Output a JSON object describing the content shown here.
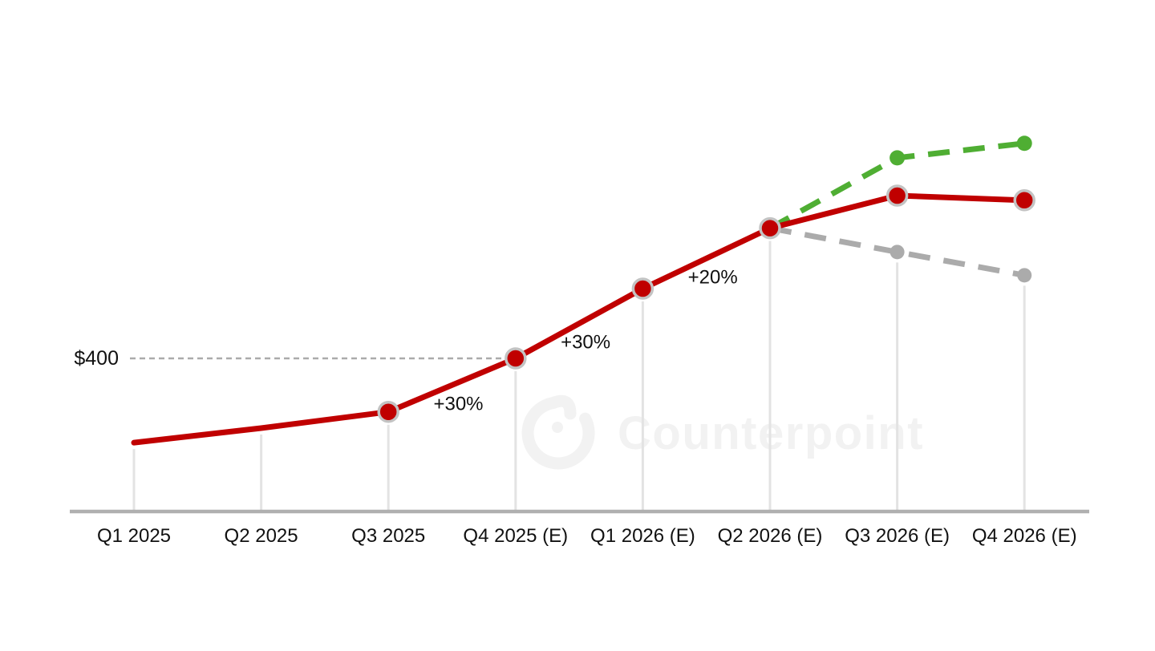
{
  "watermark": {
    "text": "Counterpoint",
    "logo": "counterpoint-logo",
    "color": "#f2f2f2"
  },
  "chart_data": {
    "type": "line",
    "title": "",
    "xlabel": "",
    "ylabel": "",
    "categories": [
      "Q1 2025",
      "Q2 2025",
      "Q3 2025",
      "Q4 2025 (E)",
      "Q1 2026 (E)",
      "Q2 2026 (E)",
      "Q3 2026 (E)",
      "Q4 2026 (E)"
    ],
    "series": [
      {
        "name": "base-price-line",
        "color": "#c00000",
        "style": "solid",
        "marker": "circle-ringed",
        "marker_from_index": 2,
        "values": [
          255,
          280,
          308,
          400,
          520,
          624,
          680,
          672
        ]
      },
      {
        "name": "upside-scenario",
        "color": "#4fae33",
        "style": "dashed",
        "marker": "dot",
        "values": [
          null,
          null,
          null,
          null,
          null,
          624,
          745,
          770
        ]
      },
      {
        "name": "downside-scenario",
        "color": "#ababab",
        "style": "dashed",
        "marker": "dot",
        "values": [
          null,
          null,
          null,
          null,
          null,
          624,
          583,
          543
        ]
      }
    ],
    "reference_line": {
      "label": "$400",
      "value": 400
    },
    "annotations": [
      {
        "text": "+30%",
        "segment": [
          2,
          3
        ]
      },
      {
        "text": "+30%",
        "segment": [
          3,
          4
        ]
      },
      {
        "text": "+20%",
        "segment": [
          4,
          5
        ]
      }
    ],
    "axis": {
      "baseline_color": "#b0b0b0",
      "dropline_color": "#e3e3e3",
      "label_color": "#111111",
      "grid": "droplines-only",
      "legend": "none"
    },
    "ylim_estimate": [
      140,
      820
    ],
    "marker_ring_color": "#c3c3c3"
  }
}
